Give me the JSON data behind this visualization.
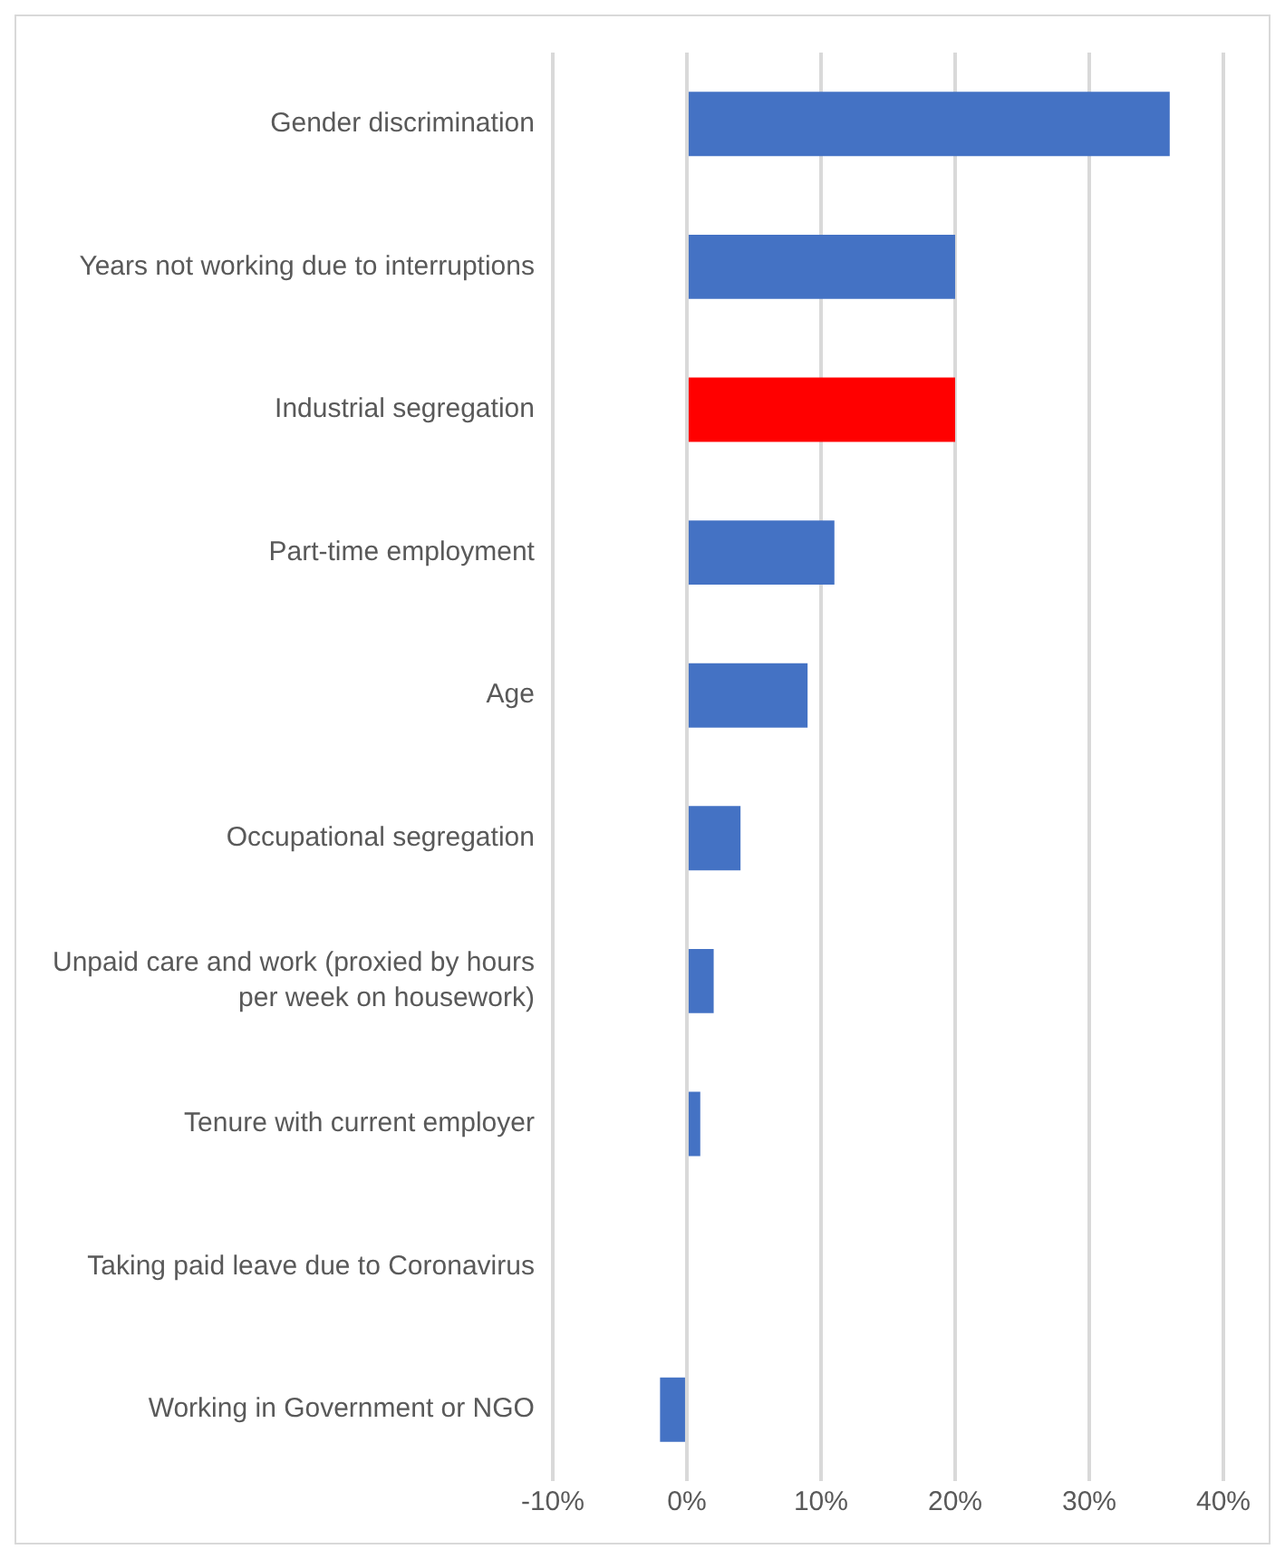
{
  "chart_data": {
    "type": "bar",
    "orientation": "horizontal",
    "categories": [
      "Gender discrimination",
      "Years not working due to interruptions",
      "Industrial segregation",
      "Part-time employment",
      "Age",
      "Occupational segregation",
      "Unpaid care and work (proxied by hours per week on housework)",
      "Tenure with current employer",
      "Taking paid leave due to Coronavirus",
      "Working in Government or NGO"
    ],
    "values": [
      36,
      20,
      20,
      11,
      9,
      4,
      2,
      1,
      0,
      -2
    ],
    "colors": [
      "#4472c4",
      "#4472c4",
      "#ff0000",
      "#4472c4",
      "#4472c4",
      "#4472c4",
      "#4472c4",
      "#4472c4",
      "#4472c4",
      "#4472c4"
    ],
    "xlim": [
      -10,
      40
    ],
    "xticks": [
      {
        "value": -10,
        "label": "-10%"
      },
      {
        "value": 0,
        "label": "0%"
      },
      {
        "value": 10,
        "label": "10%"
      },
      {
        "value": 20,
        "label": "20%"
      },
      {
        "value": 30,
        "label": "30%"
      },
      {
        "value": 40,
        "label": "40%"
      }
    ],
    "grid": "x",
    "legend": false
  }
}
